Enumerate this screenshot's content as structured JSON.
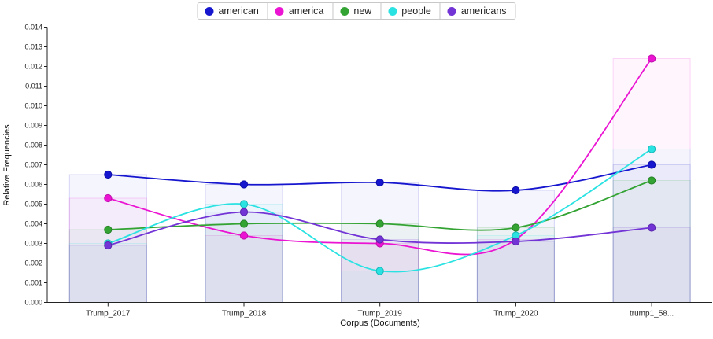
{
  "chart_data": {
    "type": "line",
    "title": "",
    "xlabel": "Corpus (Documents)",
    "ylabel": "Relative Frequencies",
    "categories": [
      "Trump_2017",
      "Trump_2018",
      "Trump_2019",
      "Trump_2020",
      "trump1_58..."
    ],
    "ylim": [
      0.0,
      0.014
    ],
    "ytick_step": 0.001,
    "ytick_labels": [
      "0.000",
      "0.001",
      "0.002",
      "0.003",
      "0.004",
      "0.005",
      "0.006",
      "0.007",
      "0.008",
      "0.009",
      "0.010",
      "0.011",
      "0.012",
      "0.013",
      "0.014"
    ],
    "grid": false,
    "legend_position": "top-center",
    "curve": "smooth-spline",
    "background_bars": true,
    "series": [
      {
        "name": "american",
        "color": "#1616cf",
        "dot_stroke": "#0d0da8",
        "values": [
          0.0065,
          0.006,
          0.0061,
          0.0057,
          0.007
        ]
      },
      {
        "name": "america",
        "color": "#ea14d2",
        "dot_stroke": "#bf10ab",
        "values": [
          0.0053,
          0.0034,
          0.003,
          0.0032,
          0.0124
        ]
      },
      {
        "name": "new",
        "color": "#33a333",
        "dot_stroke": "#268226",
        "values": [
          0.0037,
          0.004,
          0.004,
          0.0038,
          0.0062
        ]
      },
      {
        "name": "people",
        "color": "#2ae2e2",
        "dot_stroke": "#17b8b8",
        "values": [
          0.003,
          0.005,
          0.0016,
          0.0034,
          0.0078
        ]
      },
      {
        "name": "americans",
        "color": "#7334d6",
        "dot_stroke": "#5a26ad",
        "values": [
          0.0029,
          0.0046,
          0.0032,
          0.0031,
          0.0038
        ]
      }
    ]
  }
}
